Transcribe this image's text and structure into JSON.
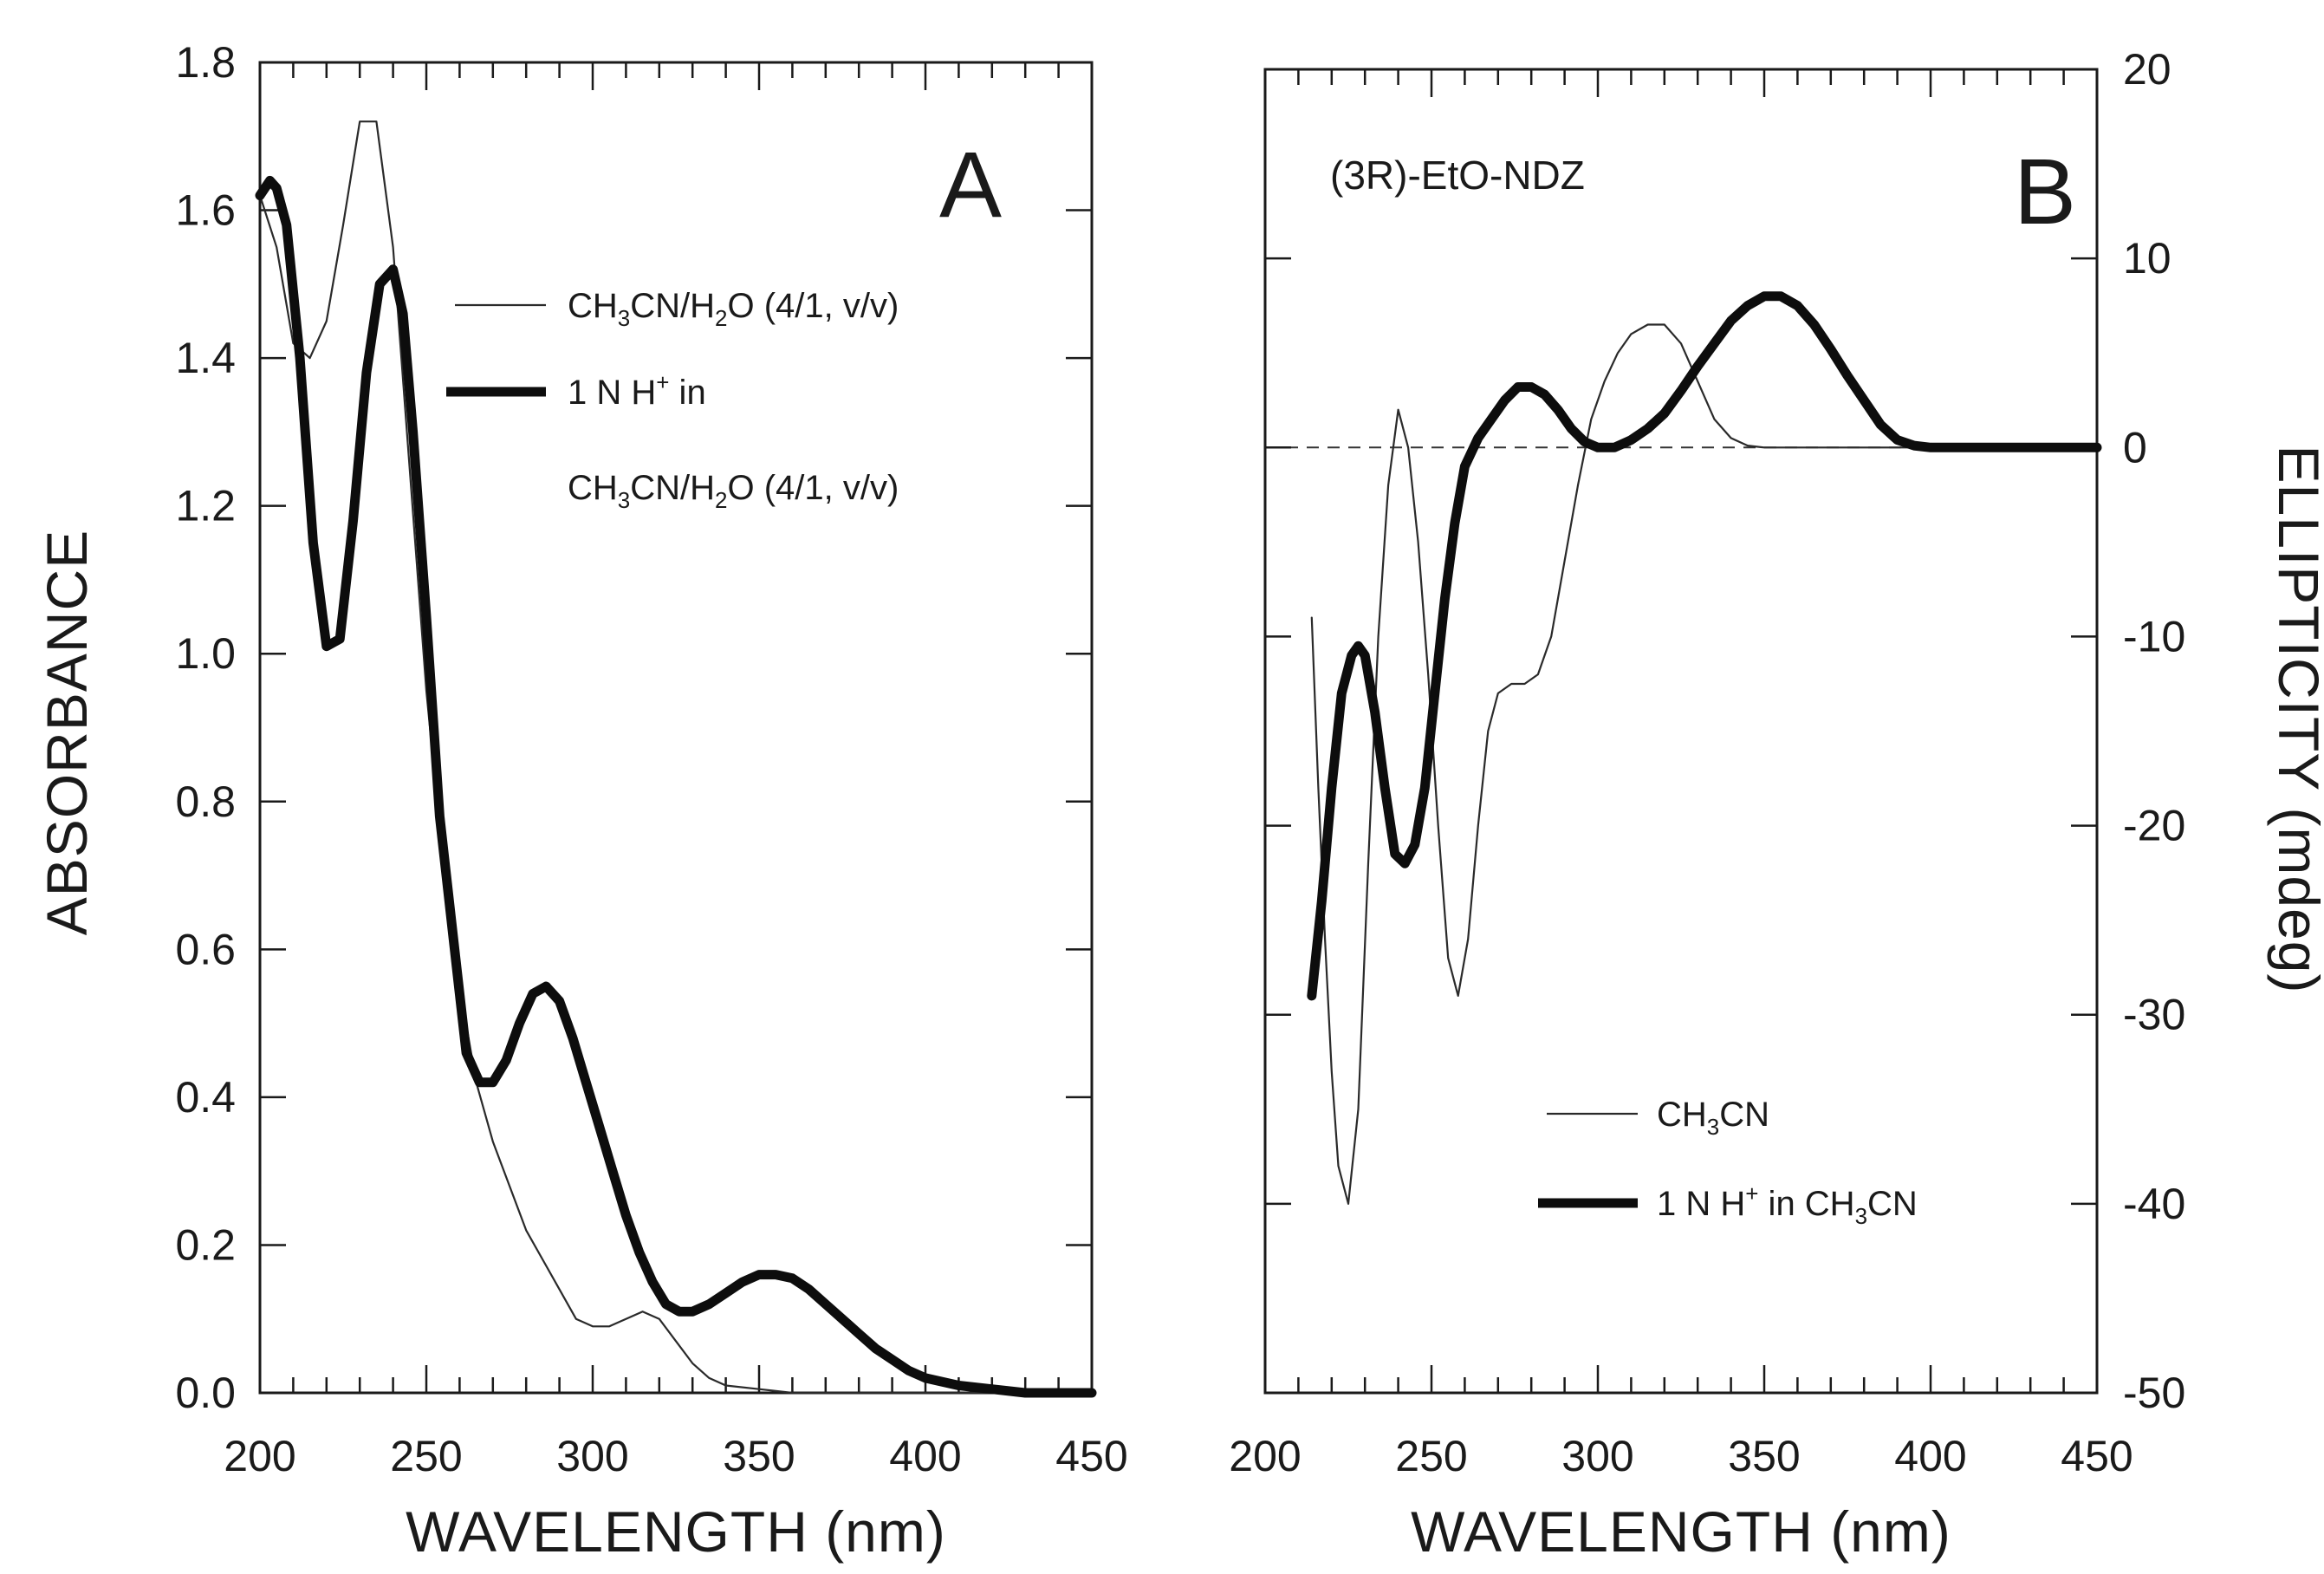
{
  "chart_data": [
    {
      "type": "line",
      "panel_label": "A",
      "xlabel": "WAVELENGTH (nm)",
      "ylabel": "ABSORBANCE",
      "xlim": [
        200,
        450
      ],
      "ylim": [
        0.0,
        1.8
      ],
      "x_ticks": [
        "200",
        "250",
        "300",
        "350",
        "400",
        "450"
      ],
      "y_ticks": [
        "0.0",
        "0.2",
        "0.4",
        "0.6",
        "0.8",
        "1.0",
        "1.2",
        "1.4",
        "1.6",
        "1.8"
      ],
      "legend_placement": "top-right",
      "series": [
        {
          "name": "CH3CN/H2O (4/1, v/v)",
          "name_parts": {
            "a": "CH",
            "b": "3",
            "c": "CN/H",
            "d": "2",
            "e": "O (4/1, v/v)"
          },
          "style": "thin",
          "x": [
            200,
            205,
            210,
            215,
            220,
            225,
            230,
            235,
            240,
            245,
            250,
            255,
            260,
            265,
            270,
            275,
            280,
            285,
            290,
            295,
            300,
            305,
            310,
            315,
            320,
            325,
            330,
            335,
            340,
            350,
            360,
            380,
            400,
            420,
            450
          ],
          "y": [
            1.62,
            1.55,
            1.42,
            1.4,
            1.45,
            1.58,
            1.72,
            1.72,
            1.55,
            1.25,
            0.95,
            0.72,
            0.55,
            0.42,
            0.34,
            0.28,
            0.22,
            0.18,
            0.14,
            0.1,
            0.09,
            0.09,
            0.1,
            0.11,
            0.1,
            0.07,
            0.04,
            0.02,
            0.01,
            0.005,
            0.0,
            0.0,
            0.0,
            0.0,
            0.0
          ]
        },
        {
          "name": "1 N H+ in CH3CN/H2O (4/1, v/v)",
          "name_line1": {
            "a": "1 N H",
            "b": "+",
            "c": " in"
          },
          "name_line2": {
            "a": "CH",
            "b": "3",
            "c": "CN/H",
            "d": "2",
            "e": "O (4/1, v/v)"
          },
          "style": "thick",
          "x": [
            200,
            203,
            205,
            208,
            212,
            216,
            220,
            224,
            228,
            232,
            236,
            240,
            243,
            246,
            250,
            254,
            258,
            262,
            266,
            270,
            274,
            278,
            282,
            286,
            290,
            294,
            298,
            302,
            306,
            310,
            314,
            318,
            322,
            326,
            330,
            335,
            340,
            345,
            350,
            355,
            360,
            365,
            370,
            375,
            380,
            385,
            390,
            395,
            400,
            410,
            420,
            430,
            440,
            450
          ],
          "y": [
            1.62,
            1.64,
            1.63,
            1.58,
            1.4,
            1.15,
            1.01,
            1.02,
            1.18,
            1.38,
            1.5,
            1.52,
            1.46,
            1.3,
            1.05,
            0.78,
            0.62,
            0.46,
            0.42,
            0.42,
            0.45,
            0.5,
            0.54,
            0.55,
            0.53,
            0.48,
            0.42,
            0.36,
            0.3,
            0.24,
            0.19,
            0.15,
            0.12,
            0.11,
            0.11,
            0.12,
            0.135,
            0.15,
            0.16,
            0.16,
            0.155,
            0.14,
            0.12,
            0.1,
            0.08,
            0.06,
            0.045,
            0.03,
            0.02,
            0.01,
            0.005,
            0.0,
            0.0,
            0.0
          ]
        }
      ]
    },
    {
      "type": "line",
      "panel_label": "B",
      "annotation": "(3R)-EtO-NDZ",
      "xlabel": "WAVELENGTH (nm)",
      "ylabel": "ELLIPTICITY (mdeg)",
      "y_axis_side": "right",
      "xlim": [
        200,
        450
      ],
      "ylim": [
        -50,
        20
      ],
      "x_ticks": [
        "200",
        "250",
        "300",
        "350",
        "400",
        "450"
      ],
      "y_ticks": [
        "-50",
        "-40",
        "-30",
        "-20",
        "-10",
        "0",
        "10",
        "20"
      ],
      "zero_line": "dashed",
      "legend_placement": "bottom-right",
      "series": [
        {
          "name": "CH3CN",
          "name_parts": {
            "a": "CH",
            "b": "3",
            "c": "CN"
          },
          "style": "thin",
          "x": [
            214,
            216,
            218,
            220,
            222,
            225,
            228,
            231,
            234,
            237,
            240,
            243,
            246,
            249,
            252,
            255,
            258,
            261,
            264,
            267,
            270,
            274,
            278,
            282,
            286,
            290,
            294,
            298,
            302,
            306,
            310,
            315,
            320,
            325,
            330,
            335,
            340,
            345,
            350,
            360,
            380,
            400,
            420,
            450
          ],
          "y": [
            -9,
            -18,
            -26,
            -33,
            -38,
            -40,
            -35,
            -22,
            -10,
            -2,
            2,
            0,
            -5,
            -12,
            -20,
            -27,
            -29,
            -26,
            -20,
            -15,
            -13,
            -12.5,
            -12.5,
            -12,
            -10,
            -6,
            -2,
            1.5,
            3.5,
            5,
            6,
            6.5,
            6.5,
            5.5,
            3.5,
            1.5,
            0.5,
            0.1,
            0,
            0,
            0,
            0,
            0,
            0
          ]
        },
        {
          "name": "1 N H+ in CH3CN",
          "name_parts": {
            "a": "1 N H",
            "b": "+",
            "c": " in CH",
            "d": "3",
            "e": "CN"
          },
          "style": "thick",
          "x": [
            214,
            217,
            220,
            223,
            226,
            228,
            230,
            233,
            236,
            239,
            242,
            245,
            248,
            251,
            254,
            257,
            260,
            264,
            268,
            272,
            276,
            280,
            284,
            288,
            292,
            296,
            300,
            305,
            310,
            315,
            320,
            325,
            330,
            335,
            340,
            345,
            350,
            355,
            360,
            365,
            370,
            375,
            380,
            385,
            390,
            395,
            400,
            405,
            410,
            415,
            420,
            430,
            440,
            450
          ],
          "y": [
            -29,
            -24,
            -18,
            -13,
            -11,
            -10.5,
            -11,
            -14,
            -18,
            -21.5,
            -22,
            -21,
            -18,
            -13,
            -8,
            -4,
            -1,
            0.5,
            1.5,
            2.5,
            3.2,
            3.2,
            2.8,
            2,
            1,
            0.3,
            0,
            0,
            0.4,
            1,
            1.8,
            3,
            4.3,
            5.5,
            6.7,
            7.5,
            8,
            8,
            7.5,
            6.5,
            5.2,
            3.8,
            2.5,
            1.2,
            0.4,
            0.1,
            0,
            0,
            0,
            0,
            0,
            0,
            0,
            0
          ]
        }
      ]
    }
  ]
}
